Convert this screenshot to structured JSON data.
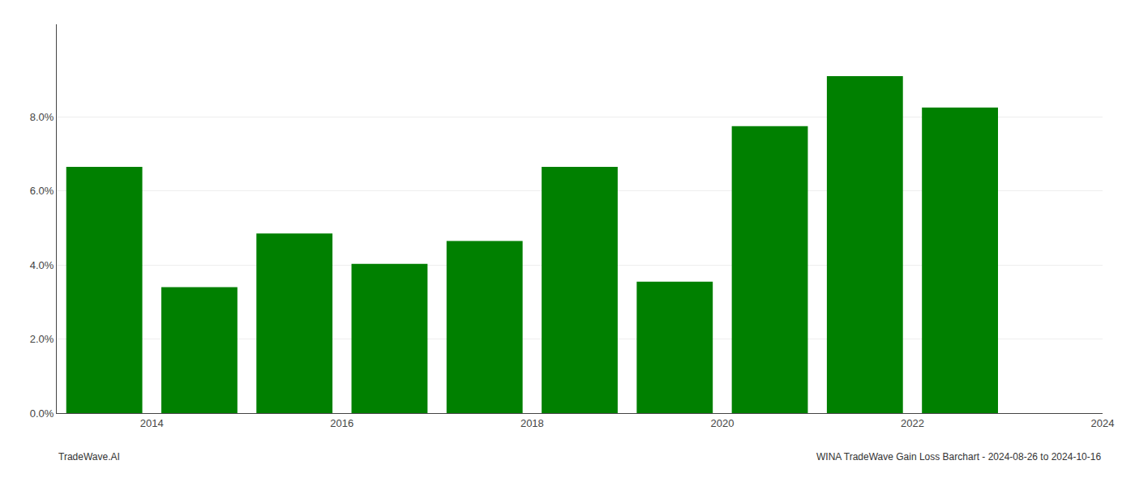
{
  "chart_data": {
    "type": "bar",
    "x": [
      2014,
      2015,
      2016,
      2017,
      2018,
      2019,
      2020,
      2021,
      2022,
      2023
    ],
    "values": [
      0.0665,
      0.034,
      0.0485,
      0.0403,
      0.0465,
      0.0665,
      0.0355,
      0.0775,
      0.091,
      0.0825
    ],
    "color": "#008000",
    "xlim": [
      2013.5,
      2024.5
    ],
    "xticks": [
      {
        "value": 2014.5,
        "label": "2014"
      },
      {
        "value": 2016.5,
        "label": "2016"
      },
      {
        "value": 2018.5,
        "label": "2018"
      },
      {
        "value": 2020.5,
        "label": "2020"
      },
      {
        "value": 2022.5,
        "label": "2022"
      },
      {
        "value": 2024.5,
        "label": "2024"
      }
    ],
    "ylim": [
      0,
      0.105
    ],
    "yticks": [
      {
        "value": 0.0,
        "label": "0.0%"
      },
      {
        "value": 0.02,
        "label": "2.0%"
      },
      {
        "value": 0.04,
        "label": "4.0%"
      },
      {
        "value": 0.06,
        "label": "6.0%"
      },
      {
        "value": 0.08,
        "label": "8.0%"
      }
    ],
    "grid": true,
    "annotations": [
      "TradeWave.AI",
      "WINA TradeWave Gain Loss Barchart - 2024-08-26 to 2024-10-16"
    ]
  }
}
